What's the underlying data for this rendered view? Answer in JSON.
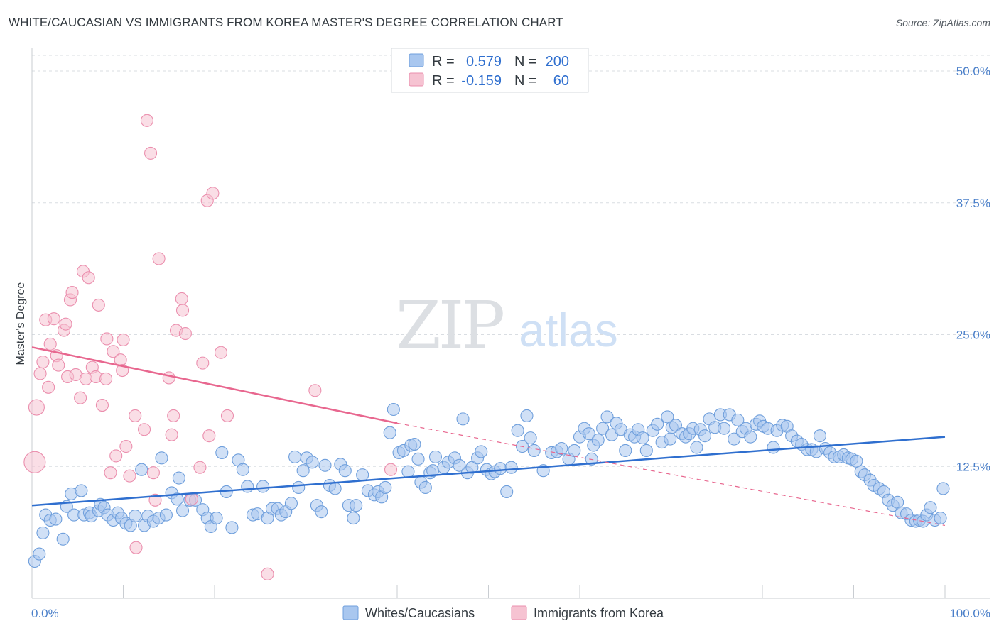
{
  "title": "WHITE/CAUCASIAN VS IMMIGRANTS FROM KOREA MASTER'S DEGREE CORRELATION CHART",
  "source": "Source: ZipAtlas.com",
  "watermark": {
    "zip": "ZIP",
    "atlas": "atlas"
  },
  "colors": {
    "blue_fill": "#a9c7ef",
    "blue_stroke": "#6f9fdc",
    "blue_line": "#2f6fcf",
    "pink_fill": "#f6c3d2",
    "pink_stroke": "#eb8fae",
    "pink_line": "#e8678f",
    "tick_text": "#4a7fc9",
    "grid": "#d9dde2"
  },
  "legend": {
    "rows": [
      {
        "r_label": "R =",
        "r_value": "0.579",
        "n_label": "N =",
        "n_value": "200",
        "series": "blue"
      },
      {
        "r_label": "R =",
        "r_value": "-0.159",
        "n_label": "N =",
        "n_value": "60",
        "series": "pink"
      }
    ]
  },
  "chart_data": {
    "type": "scatter",
    "title": "WHITE/CAUCASIAN VS IMMIGRANTS FROM KOREA MASTER'S DEGREE CORRELATION CHART",
    "xlabel": "",
    "ylabel": "Master's Degree",
    "xlim": [
      0,
      100
    ],
    "ylim": [
      0,
      50
    ],
    "x_tick_labels": [
      "0.0%",
      "100.0%"
    ],
    "y_ticks": [
      12.5,
      25.0,
      37.5,
      50.0
    ],
    "y_tick_labels": [
      "12.5%",
      "25.0%",
      "37.5%",
      "50.0%"
    ],
    "grid": true,
    "legend_position": "top-center",
    "series": [
      {
        "name": "Whites/Caucasians",
        "color": "#a9c7ef",
        "r": 0.579,
        "n": 200,
        "trend": {
          "x": [
            0,
            100
          ],
          "y": [
            8.8,
            15.3
          ]
        },
        "points": [
          [
            0.3,
            3.5
          ],
          [
            0.8,
            4.2
          ],
          [
            1.2,
            6.2
          ],
          [
            1.5,
            7.9
          ],
          [
            2.0,
            7.4
          ],
          [
            2.6,
            7.5
          ],
          [
            3.4,
            5.6
          ],
          [
            3.8,
            8.7
          ],
          [
            4.3,
            9.9
          ],
          [
            4.6,
            7.9
          ],
          [
            5.4,
            10.2
          ],
          [
            5.7,
            7.9
          ],
          [
            6.3,
            8.1
          ],
          [
            6.5,
            7.8
          ],
          [
            7.3,
            8.3
          ],
          [
            7.5,
            8.9
          ],
          [
            7.9,
            8.6
          ],
          [
            8.3,
            7.9
          ],
          [
            8.9,
            7.4
          ],
          [
            9.4,
            8.1
          ],
          [
            9.8,
            7.6
          ],
          [
            10.3,
            7.1
          ],
          [
            10.8,
            6.9
          ],
          [
            11.3,
            7.8
          ],
          [
            12.0,
            12.2
          ],
          [
            12.3,
            6.9
          ],
          [
            12.7,
            7.8
          ],
          [
            13.3,
            7.3
          ],
          [
            13.9,
            7.6
          ],
          [
            14.2,
            13.3
          ],
          [
            14.7,
            7.9
          ],
          [
            15.3,
            10.0
          ],
          [
            15.9,
            9.4
          ],
          [
            16.1,
            11.4
          ],
          [
            16.5,
            8.3
          ],
          [
            17.3,
            9.3
          ],
          [
            17.9,
            9.3
          ],
          [
            18.7,
            8.4
          ],
          [
            19.2,
            7.6
          ],
          [
            19.6,
            6.8
          ],
          [
            20.2,
            7.6
          ],
          [
            20.8,
            13.8
          ],
          [
            21.3,
            10.1
          ],
          [
            21.9,
            6.7
          ],
          [
            22.6,
            13.1
          ],
          [
            23.1,
            12.2
          ],
          [
            23.6,
            10.6
          ],
          [
            24.2,
            7.9
          ],
          [
            24.7,
            8.0
          ],
          [
            25.3,
            10.6
          ],
          [
            25.8,
            7.6
          ],
          [
            26.3,
            8.5
          ],
          [
            26.9,
            8.5
          ],
          [
            27.3,
            7.9
          ],
          [
            27.8,
            8.2
          ],
          [
            28.4,
            9.0
          ],
          [
            28.8,
            13.4
          ],
          [
            29.2,
            10.5
          ],
          [
            29.7,
            12.1
          ],
          [
            30.1,
            13.3
          ],
          [
            30.7,
            12.9
          ],
          [
            31.2,
            8.8
          ],
          [
            31.7,
            8.2
          ],
          [
            32.1,
            12.6
          ],
          [
            32.6,
            10.7
          ],
          [
            33.2,
            10.4
          ],
          [
            33.8,
            12.7
          ],
          [
            34.3,
            12.1
          ],
          [
            34.7,
            8.8
          ],
          [
            35.2,
            7.6
          ],
          [
            35.5,
            8.8
          ],
          [
            36.2,
            11.7
          ],
          [
            36.8,
            10.2
          ],
          [
            37.5,
            9.8
          ],
          [
            37.9,
            10.1
          ],
          [
            38.3,
            9.6
          ],
          [
            38.7,
            10.5
          ],
          [
            39.2,
            15.7
          ],
          [
            39.6,
            17.9
          ],
          [
            40.2,
            13.8
          ],
          [
            40.7,
            14.0
          ],
          [
            41.2,
            12.0
          ],
          [
            41.5,
            14.5
          ],
          [
            41.9,
            14.6
          ],
          [
            42.3,
            13.2
          ],
          [
            42.6,
            11.0
          ],
          [
            43.1,
            10.5
          ],
          [
            43.6,
            11.9
          ],
          [
            43.9,
            12.1
          ],
          [
            44.2,
            13.4
          ],
          [
            45.1,
            12.4
          ],
          [
            45.6,
            12.9
          ],
          [
            46.3,
            13.3
          ],
          [
            46.8,
            12.6
          ],
          [
            47.2,
            17.0
          ],
          [
            47.7,
            11.9
          ],
          [
            48.2,
            12.4
          ],
          [
            48.8,
            13.3
          ],
          [
            49.2,
            13.9
          ],
          [
            49.8,
            12.2
          ],
          [
            50.3,
            11.8
          ],
          [
            50.7,
            12.0
          ],
          [
            51.3,
            12.3
          ],
          [
            52.0,
            10.1
          ],
          [
            52.5,
            12.4
          ],
          [
            53.2,
            15.9
          ],
          [
            53.7,
            14.4
          ],
          [
            54.2,
            17.3
          ],
          [
            54.6,
            15.2
          ],
          [
            55.0,
            14.0
          ],
          [
            56.0,
            12.1
          ],
          [
            56.9,
            13.8
          ],
          [
            57.5,
            13.9
          ],
          [
            58.0,
            14.2
          ],
          [
            58.8,
            13.2
          ],
          [
            59.4,
            14.0
          ],
          [
            60.0,
            15.3
          ],
          [
            60.5,
            16.1
          ],
          [
            61.0,
            15.6
          ],
          [
            61.5,
            14.5
          ],
          [
            62.0,
            15.0
          ],
          [
            62.5,
            16.1
          ],
          [
            63.0,
            17.2
          ],
          [
            63.5,
            15.5
          ],
          [
            64.0,
            16.6
          ],
          [
            64.5,
            16.0
          ],
          [
            65.0,
            14.0
          ],
          [
            65.5,
            15.5
          ],
          [
            66.0,
            15.3
          ],
          [
            66.4,
            16.0
          ],
          [
            66.9,
            15.2
          ],
          [
            67.3,
            14.0
          ],
          [
            68.0,
            15.9
          ],
          [
            68.5,
            16.5
          ],
          [
            69.0,
            14.8
          ],
          [
            69.6,
            17.2
          ],
          [
            70.1,
            16.2
          ],
          [
            70.5,
            16.4
          ],
          [
            71.2,
            15.6
          ],
          [
            71.6,
            15.3
          ],
          [
            72.0,
            15.6
          ],
          [
            72.4,
            16.1
          ],
          [
            72.8,
            14.3
          ],
          [
            73.2,
            16.0
          ],
          [
            73.7,
            15.4
          ],
          [
            74.2,
            17.0
          ],
          [
            74.8,
            16.2
          ],
          [
            75.4,
            17.4
          ],
          [
            75.8,
            16.1
          ],
          [
            76.4,
            17.4
          ],
          [
            76.9,
            15.1
          ],
          [
            77.3,
            16.9
          ],
          [
            77.8,
            15.8
          ],
          [
            78.2,
            16.1
          ],
          [
            78.7,
            15.3
          ],
          [
            79.3,
            16.5
          ],
          [
            79.7,
            16.8
          ],
          [
            80.1,
            16.3
          ],
          [
            80.6,
            16.1
          ],
          [
            81.2,
            14.3
          ],
          [
            81.6,
            15.9
          ],
          [
            82.2,
            16.4
          ],
          [
            82.7,
            16.3
          ],
          [
            83.2,
            15.4
          ],
          [
            83.8,
            14.9
          ],
          [
            84.3,
            14.6
          ],
          [
            84.9,
            14.1
          ],
          [
            85.4,
            14.1
          ],
          [
            85.9,
            13.9
          ],
          [
            86.3,
            15.4
          ],
          [
            86.9,
            14.2
          ],
          [
            87.4,
            13.8
          ],
          [
            87.9,
            13.4
          ],
          [
            88.4,
            13.4
          ],
          [
            88.9,
            13.6
          ],
          [
            89.4,
            13.3
          ],
          [
            89.8,
            13.2
          ],
          [
            90.3,
            13.0
          ],
          [
            90.8,
            12.0
          ],
          [
            91.2,
            11.7
          ],
          [
            91.8,
            11.2
          ],
          [
            92.2,
            10.7
          ],
          [
            92.8,
            10.4
          ],
          [
            93.3,
            10.1
          ],
          [
            93.8,
            9.3
          ],
          [
            94.3,
            8.8
          ],
          [
            94.8,
            9.1
          ],
          [
            95.2,
            8.1
          ],
          [
            95.8,
            8.0
          ],
          [
            96.3,
            7.4
          ],
          [
            96.8,
            7.3
          ],
          [
            97.2,
            7.4
          ],
          [
            97.6,
            7.3
          ],
          [
            98.0,
            7.9
          ],
          [
            98.4,
            8.6
          ],
          [
            98.9,
            7.4
          ],
          [
            99.5,
            7.6
          ],
          [
            99.8,
            10.4
          ],
          [
            61.3,
            13.2
          ],
          [
            69.9,
            15.1
          ]
        ]
      },
      {
        "name": "Immigrants from Korea",
        "color": "#f6c3d2",
        "r": -0.159,
        "n": 60,
        "trend": {
          "x": [
            0,
            40
          ],
          "y": [
            23.8,
            16.6
          ],
          "dashed_to": [
            100,
            6.9
          ]
        },
        "points": [
          [
            0.3,
            12.9
          ],
          [
            0.5,
            18.1
          ],
          [
            0.9,
            21.3
          ],
          [
            1.2,
            22.4
          ],
          [
            1.5,
            26.4
          ],
          [
            1.8,
            20.0
          ],
          [
            2.0,
            24.1
          ],
          [
            2.4,
            26.5
          ],
          [
            2.7,
            23.0
          ],
          [
            2.9,
            22.1
          ],
          [
            3.5,
            25.4
          ],
          [
            3.7,
            26.0
          ],
          [
            3.9,
            21.0
          ],
          [
            4.2,
            28.3
          ],
          [
            4.4,
            29.0
          ],
          [
            4.8,
            21.2
          ],
          [
            5.3,
            19.0
          ],
          [
            5.6,
            31.0
          ],
          [
            5.9,
            20.8
          ],
          [
            6.2,
            30.4
          ],
          [
            6.6,
            21.9
          ],
          [
            7.0,
            21.0
          ],
          [
            7.3,
            27.8
          ],
          [
            7.7,
            18.3
          ],
          [
            8.1,
            20.8
          ],
          [
            8.2,
            24.6
          ],
          [
            8.6,
            11.9
          ],
          [
            8.9,
            23.4
          ],
          [
            9.2,
            13.5
          ],
          [
            9.7,
            22.6
          ],
          [
            9.9,
            21.6
          ],
          [
            10.0,
            24.5
          ],
          [
            10.3,
            14.4
          ],
          [
            10.7,
            11.6
          ],
          [
            11.3,
            17.3
          ],
          [
            11.4,
            4.8
          ],
          [
            12.3,
            16.0
          ],
          [
            12.6,
            45.3
          ],
          [
            13.0,
            42.2
          ],
          [
            13.3,
            11.9
          ],
          [
            13.5,
            9.3
          ],
          [
            13.9,
            32.2
          ],
          [
            15.0,
            20.9
          ],
          [
            15.3,
            15.5
          ],
          [
            15.5,
            17.3
          ],
          [
            15.8,
            25.4
          ],
          [
            16.4,
            28.4
          ],
          [
            16.5,
            27.3
          ],
          [
            16.8,
            25.1
          ],
          [
            17.5,
            9.4
          ],
          [
            18.4,
            12.4
          ],
          [
            18.7,
            22.3
          ],
          [
            19.2,
            37.7
          ],
          [
            19.4,
            15.4
          ],
          [
            19.8,
            38.4
          ],
          [
            20.7,
            23.3
          ],
          [
            21.4,
            17.3
          ],
          [
            25.8,
            2.3
          ],
          [
            31.0,
            19.7
          ],
          [
            39.3,
            12.2
          ]
        ]
      }
    ]
  },
  "bottom_legend": [
    {
      "label": "Whites/Caucasians",
      "series": "blue"
    },
    {
      "label": "Immigrants from Korea",
      "series": "pink"
    }
  ]
}
